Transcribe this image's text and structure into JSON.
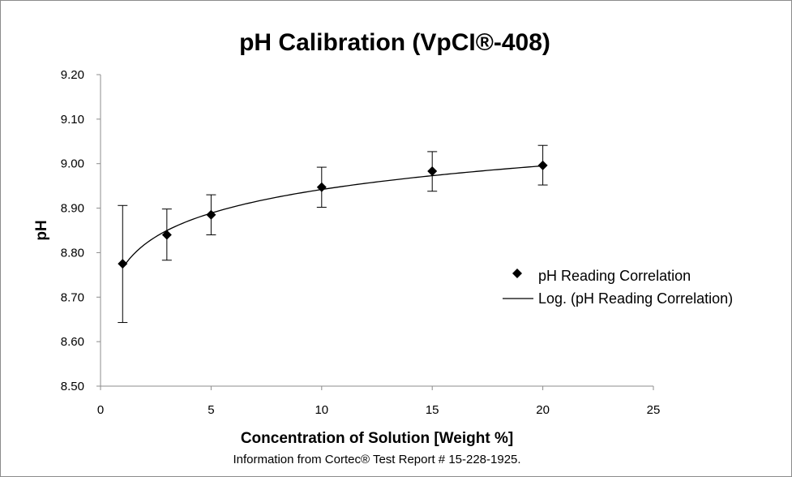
{
  "chart_data": {
    "type": "scatter",
    "title": "pH Calibration (VpCI®-408)",
    "xlabel": "Concentration of Solution [Weight %]",
    "ylabel": "pH",
    "note": "Information from Cortec® Test Report # 15-228-1925.",
    "xlim": [
      0,
      25
    ],
    "ylim": [
      8.5,
      9.2
    ],
    "x_ticks": [
      "0",
      "5",
      "10",
      "15",
      "20",
      "25"
    ],
    "y_ticks": [
      "8.50",
      "8.60",
      "8.70",
      "8.80",
      "8.90",
      "9.00",
      "9.10",
      "9.20"
    ],
    "grid": false,
    "legend_position": "right",
    "series": [
      {
        "name": "pH Reading Correlation",
        "marker": "diamond",
        "color": "#000000",
        "x": [
          1,
          3,
          5,
          10,
          15,
          20
        ],
        "y": [
          8.775,
          8.84,
          8.885,
          8.947,
          8.983,
          8.996
        ],
        "error_low": [
          8.643,
          8.783,
          8.84,
          8.902,
          8.938,
          8.952
        ],
        "error_high": [
          8.906,
          8.898,
          8.93,
          8.992,
          9.027,
          9.041
        ]
      }
    ],
    "trendline": {
      "name": "Log. (pH Reading Correlation)",
      "type": "logarithmic",
      "color": "#000000",
      "x_range": [
        1,
        20
      ],
      "intercept": 8.7655,
      "slope": 0.0766
    }
  }
}
